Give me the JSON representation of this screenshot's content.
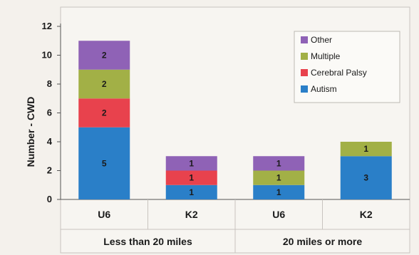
{
  "chart_data": {
    "type": "bar",
    "stacked": true,
    "title": "",
    "xlabel": "",
    "ylabel": "Number - CWD",
    "ylim": [
      0,
      12
    ],
    "yticks": [
      0,
      2,
      4,
      6,
      8,
      10,
      12
    ],
    "grid": false,
    "legend_position": "top-right",
    "groups": [
      {
        "label": "Less than 20 miles",
        "categories": [
          "U6",
          "K2"
        ]
      },
      {
        "label": "20 miles or more",
        "categories": [
          "U6",
          "K2"
        ]
      }
    ],
    "categories": [
      "U6",
      "K2",
      "U6",
      "K2"
    ],
    "series": [
      {
        "name": "Autism",
        "color": "#2a7fc8",
        "values": [
          5,
          1,
          1,
          3
        ]
      },
      {
        "name": "Cerebral Palsy",
        "color": "#e8424d",
        "values": [
          2,
          1,
          0,
          0
        ]
      },
      {
        "name": "Multiple",
        "color": "#a2b046",
        "values": [
          2,
          0,
          1,
          1
        ]
      },
      {
        "name": "Other",
        "color": "#8f62b6",
        "values": [
          2,
          1,
          1,
          0
        ]
      }
    ],
    "legend_order": [
      "Other",
      "Multiple",
      "Cerebral Palsy",
      "Autism"
    ]
  }
}
